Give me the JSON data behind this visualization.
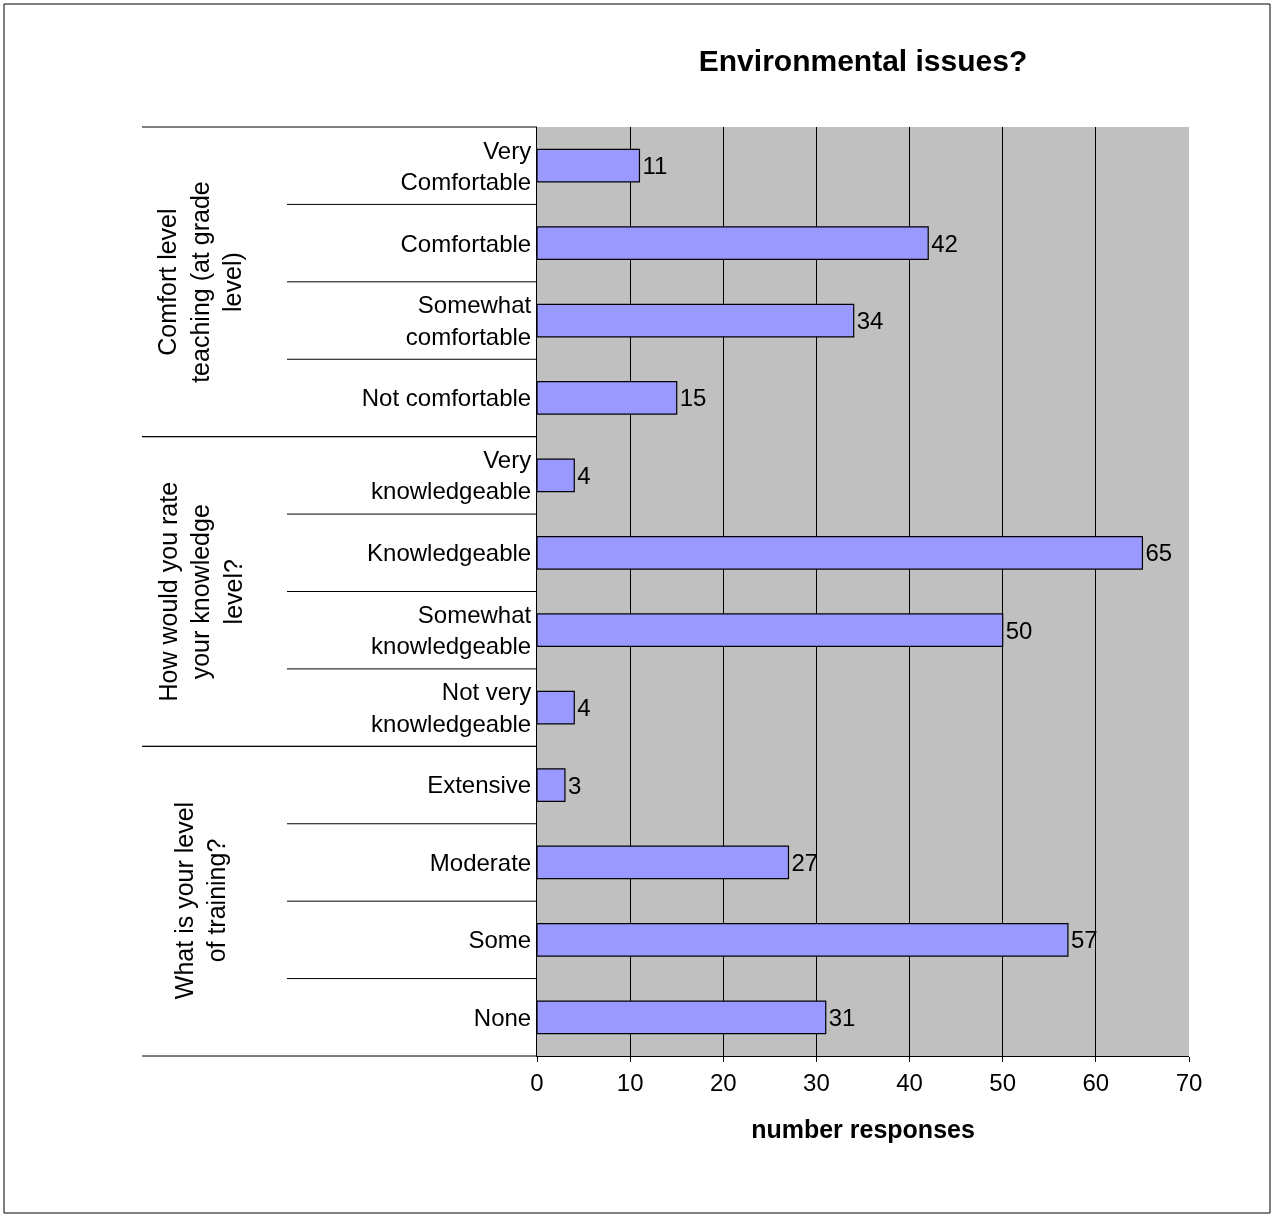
{
  "chart_data": {
    "type": "bar",
    "orientation": "horizontal",
    "title": "Environmental issues?",
    "xlabel": "number responses",
    "categories": [
      "Very Comfortable",
      "Comfortable",
      "Somewhat comfortable",
      "Not comfortable",
      "Very knowledgeable",
      "Knowledgeable",
      "Somewhat knowledgeable",
      "Not very knowledgeable",
      "Extensive",
      "Moderate",
      "Some",
      "None"
    ],
    "values": [
      11,
      42,
      34,
      15,
      4,
      65,
      50,
      4,
      3,
      27,
      57,
      31
    ],
    "color": "#9999ff",
    "xlim": [
      0,
      70
    ],
    "xticks": [
      0,
      10,
      20,
      30,
      40,
      50,
      60,
      70
    ],
    "grid": "x",
    "data_labels": true,
    "annotations": [
      "Comfort level teaching (at grade level)",
      "How would you rate your knowledge level?",
      "What is your level of training?"
    ]
  }
}
